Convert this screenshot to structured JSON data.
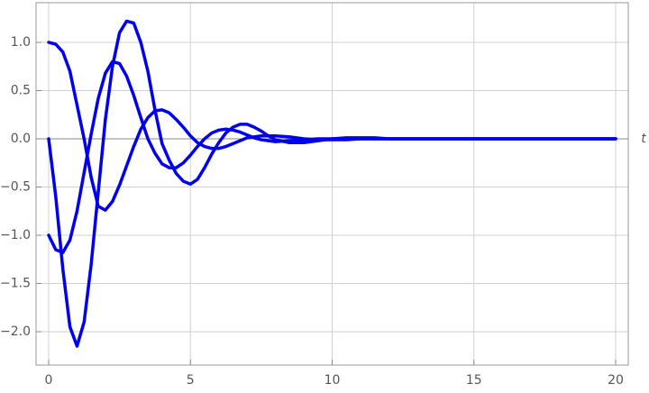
{
  "chart_data": {
    "type": "line",
    "x_label": "t",
    "x": [
      0,
      0.25,
      0.5,
      0.75,
      1,
      1.25,
      1.5,
      1.75,
      2,
      2.25,
      2.5,
      2.75,
      3,
      3.25,
      3.5,
      3.75,
      4,
      4.25,
      4.5,
      4.75,
      5,
      5.25,
      5.5,
      5.75,
      6,
      6.25,
      6.5,
      6.75,
      7,
      7.25,
      7.5,
      7.75,
      8,
      8.5,
      9,
      9.5,
      10,
      10.5,
      11,
      11.5,
      12,
      13,
      14,
      15,
      16,
      17,
      18,
      19,
      20
    ],
    "series": [
      {
        "color": "#0000ee",
        "values": [
          1.0,
          0.98,
          0.9,
          0.7,
          0.35,
          0.0,
          -0.4,
          -0.7,
          -0.74,
          -0.65,
          -0.48,
          -0.28,
          -0.08,
          0.1,
          0.22,
          0.29,
          0.3,
          0.27,
          0.2,
          0.12,
          0.03,
          -0.04,
          -0.08,
          -0.1,
          -0.1,
          -0.08,
          -0.05,
          -0.02,
          0.01,
          0.02,
          0.03,
          0.03,
          0.03,
          0.02,
          0.0,
          -0.01,
          -0.01,
          -0.01,
          0,
          0,
          0,
          0,
          0,
          0,
          0,
          0,
          0,
          0,
          0
        ]
      },
      {
        "color": "#0000ee",
        "values": [
          0,
          -0.6,
          -1.35,
          -1.95,
          -2.15,
          -1.9,
          -1.3,
          -0.55,
          0.2,
          0.75,
          1.1,
          1.22,
          1.2,
          1.0,
          0.7,
          0.3,
          -0.05,
          -0.22,
          -0.36,
          -0.44,
          -0.47,
          -0.42,
          -0.3,
          -0.16,
          -0.04,
          0.06,
          0.12,
          0.15,
          0.15,
          0.12,
          0.08,
          0.03,
          -0.01,
          -0.04,
          -0.04,
          -0.02,
          0,
          0.01,
          0.01,
          0.01,
          0,
          0,
          0,
          0,
          0,
          0,
          0,
          0,
          0
        ]
      },
      {
        "color": "#0000ee",
        "values": [
          -1.0,
          -1.15,
          -1.18,
          -1.05,
          -0.75,
          -0.35,
          0.05,
          0.42,
          0.68,
          0.8,
          0.78,
          0.65,
          0.45,
          0.22,
          0.0,
          -0.15,
          -0.26,
          -0.3,
          -0.3,
          -0.25,
          -0.17,
          -0.08,
          0.0,
          0.06,
          0.09,
          0.1,
          0.09,
          0.07,
          0.04,
          0.01,
          -0.01,
          -0.02,
          -0.03,
          -0.02,
          -0.01,
          0,
          0,
          0,
          0,
          0,
          0,
          0,
          0,
          0,
          0,
          0,
          0,
          0,
          0
        ]
      }
    ],
    "xlim": [
      -0.445,
      20.445
    ],
    "ylim": [
      -2.346,
      1.411
    ],
    "xticks": [
      0,
      5,
      10,
      15,
      20
    ],
    "yticks": [
      {
        "value": -2,
        "label": "−2.0"
      },
      {
        "value": -1.5,
        "label": "−1.5"
      },
      {
        "value": -1,
        "label": "−1.0"
      },
      {
        "value": -0.5,
        "label": "−0.5"
      },
      {
        "value": 0,
        "label": "0.0"
      },
      0.5,
      {
        "value": 1,
        "label": "1.0"
      }
    ],
    "grid": true
  }
}
